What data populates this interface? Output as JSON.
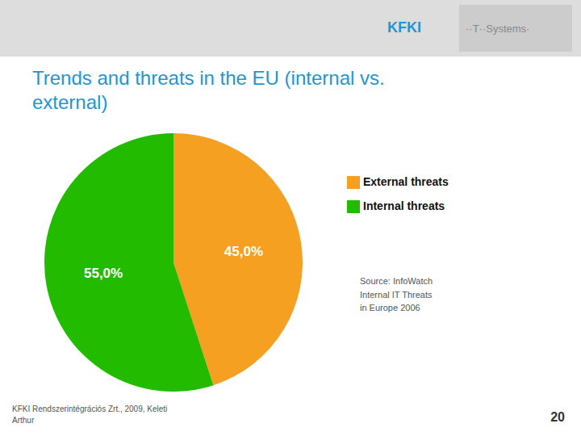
{
  "chart_data": {
    "type": "pie",
    "title": "Trends and threats in the EU (internal vs.\nexternal)",
    "categories": [
      "External threats",
      "Internal threats"
    ],
    "values": [
      45.0,
      55.0
    ],
    "value_labels": [
      "45,0%",
      "55,0%"
    ],
    "colors": [
      "#F5A020",
      "#22BB00"
    ],
    "data_labels": true,
    "legend": "right",
    "annotations": [
      "KFKI",
      "··T··Systems·",
      "Source: InfoWatch\nInternal IT Threats\nin Europe 2006",
      "KFKI Rendszerintégrációs Zrt., 2009, Keleti\nArthur",
      "20"
    ]
  }
}
